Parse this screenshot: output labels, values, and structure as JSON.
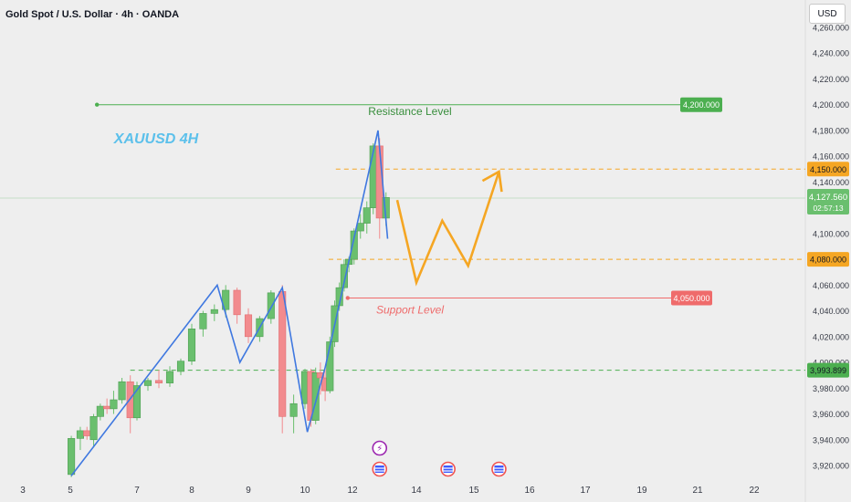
{
  "header": {
    "symbol_title": "Gold Spot / U.S. Dollar · 4h · OANDA",
    "currency_button": "USD"
  },
  "colors": {
    "background": "#eeeeee",
    "bull_candle": "#6abf6e",
    "bear_candle": "#f28b8e",
    "zigzag": "#3f78e0",
    "forecast_arrow": "#f5a623",
    "resistance_line": "#4caf50",
    "support_line": "#ef6b6b",
    "dashed_orange": "#f5a623",
    "dashed_green": "#4caf50",
    "axis_text": "#363a45"
  },
  "chart_data": {
    "type": "candlestick",
    "symbol_label": "XAUUSD 4H",
    "y_axis": {
      "min": 3910,
      "max": 4270,
      "ticks": [
        "4,260.000",
        "4,240.000",
        "4,220.000",
        "4,200.000",
        "4,180.000",
        "4,160.000",
        "4,140.000",
        "4,100.000",
        "4,060.000",
        "4,040.000",
        "4,020.000",
        "4,000.000",
        "3,980.000",
        "3,960.000",
        "3,940.000",
        "3,920.000"
      ],
      "tick_values": [
        4260,
        4240,
        4220,
        4200,
        4180,
        4160,
        4140,
        4100,
        4060,
        4040,
        4020,
        4000,
        3980,
        3960,
        3940,
        3920
      ]
    },
    "x_axis": {
      "ticks": [
        "3",
        "5",
        "7",
        "8",
        "9",
        "10",
        "12",
        "14",
        "15",
        "16",
        "17",
        "19",
        "21",
        "22"
      ],
      "tick_positions_day": [
        3,
        5,
        7,
        8,
        9,
        10,
        12,
        14,
        15,
        16,
        17,
        19,
        21,
        22
      ]
    },
    "candles": [
      {
        "d": 5.03,
        "o": 3913,
        "h": 3943,
        "l": 3911,
        "c": 3941
      },
      {
        "d": 5.3,
        "o": 3941,
        "h": 3950,
        "l": 3932,
        "c": 3947
      },
      {
        "d": 5.5,
        "o": 3947,
        "h": 3950,
        "l": 3940,
        "c": 3943
      },
      {
        "d": 5.7,
        "o": 3940,
        "h": 3960,
        "l": 3934,
        "c": 3958
      },
      {
        "d": 5.9,
        "o": 3958,
        "h": 3968,
        "l": 3955,
        "c": 3966
      },
      {
        "d": 6.1,
        "o": 3966,
        "h": 3972,
        "l": 3960,
        "c": 3964
      },
      {
        "d": 6.3,
        "o": 3964,
        "h": 3978,
        "l": 3960,
        "c": 3971
      },
      {
        "d": 6.55,
        "o": 3971,
        "h": 3988,
        "l": 3968,
        "c": 3985
      },
      {
        "d": 6.8,
        "o": 3985,
        "h": 3990,
        "l": 3945,
        "c": 3957
      },
      {
        "d": 7.0,
        "o": 3957,
        "h": 3985,
        "l": 3955,
        "c": 3982
      },
      {
        "d": 7.2,
        "o": 3982,
        "h": 3988,
        "l": 3978,
        "c": 3986
      },
      {
        "d": 7.4,
        "o": 3986,
        "h": 3994,
        "l": 3980,
        "c": 3984
      },
      {
        "d": 7.6,
        "o": 3984,
        "h": 3997,
        "l": 3981,
        "c": 3993
      },
      {
        "d": 7.8,
        "o": 3993,
        "h": 4003,
        "l": 3990,
        "c": 4001
      },
      {
        "d": 8.0,
        "o": 4001,
        "h": 4030,
        "l": 3998,
        "c": 4026
      },
      {
        "d": 8.2,
        "o": 4026,
        "h": 4040,
        "l": 4020,
        "c": 4038
      },
      {
        "d": 8.4,
        "o": 4038,
        "h": 4045,
        "l": 4032,
        "c": 4041
      },
      {
        "d": 8.6,
        "o": 4041,
        "h": 4060,
        "l": 4035,
        "c": 4056
      },
      {
        "d": 8.8,
        "o": 4056,
        "h": 4058,
        "l": 4030,
        "c": 4037
      },
      {
        "d": 9.0,
        "o": 4037,
        "h": 4042,
        "l": 4015,
        "c": 4020
      },
      {
        "d": 9.2,
        "o": 4020,
        "h": 4036,
        "l": 4016,
        "c": 4034
      },
      {
        "d": 9.4,
        "o": 4034,
        "h": 4056,
        "l": 4030,
        "c": 4054
      },
      {
        "d": 9.6,
        "o": 4055,
        "h": 4060,
        "l": 3945,
        "c": 3958
      },
      {
        "d": 9.8,
        "o": 3958,
        "h": 3975,
        "l": 3945,
        "c": 3968
      },
      {
        "d": 10.0,
        "o": 3968,
        "h": 3995,
        "l": 3964,
        "c": 3993
      },
      {
        "d": 10.25,
        "o": 3993,
        "h": 3995,
        "l": 3950,
        "c": 3955
      },
      {
        "d": 10.45,
        "o": 3955,
        "h": 3996,
        "l": 3952,
        "c": 3992
      },
      {
        "d": 10.65,
        "o": 3992,
        "h": 4000,
        "l": 3975,
        "c": 3988
      },
      {
        "d": 10.85,
        "o": 3988,
        "h": 3995,
        "l": 3970,
        "c": 3978
      },
      {
        "d": 11.05,
        "o": 3978,
        "h": 4020,
        "l": 3976,
        "c": 4016
      },
      {
        "d": 11.25,
        "o": 4016,
        "h": 4048,
        "l": 4012,
        "c": 4044
      },
      {
        "d": 11.45,
        "o": 4044,
        "h": 4062,
        "l": 4040,
        "c": 4058
      },
      {
        "d": 11.65,
        "o": 4058,
        "h": 4080,
        "l": 4055,
        "c": 4076
      },
      {
        "d": 11.85,
        "o": 4076,
        "h": 4082,
        "l": 4070,
        "c": 4080
      },
      {
        "d": 12.05,
        "o": 4080,
        "h": 4104,
        "l": 4076,
        "c": 4102
      },
      {
        "d": 12.25,
        "o": 4102,
        "h": 4115,
        "l": 4096,
        "c": 4108
      },
      {
        "d": 12.45,
        "o": 4108,
        "h": 4125,
        "l": 4100,
        "c": 4120
      },
      {
        "d": 12.65,
        "o": 4120,
        "h": 4170,
        "l": 4115,
        "c": 4168
      },
      {
        "d": 12.85,
        "o": 4168,
        "h": 4174,
        "l": 4096,
        "c": 4112
      },
      {
        "d": 13.05,
        "o": 4112,
        "h": 4132,
        "l": 4106,
        "c": 4128
      }
    ],
    "zigzag": [
      [
        5.03,
        3912
      ],
      [
        8.45,
        4060
      ],
      [
        8.85,
        4000
      ],
      [
        9.6,
        4058
      ],
      [
        10.1,
        3946
      ],
      [
        10.85,
        3996
      ],
      [
        12.8,
        4180
      ],
      [
        13.1,
        4096
      ]
    ],
    "forecast_path": [
      [
        13.4,
        4126
      ],
      [
        14.0,
        4062
      ],
      [
        14.45,
        4110
      ],
      [
        14.9,
        4075
      ],
      [
        15.45,
        4148
      ]
    ],
    "forecast_arrow_tip": [
      15.45,
      4148
    ],
    "horizontal_lines": [
      {
        "name": "resistance",
        "value": 4200,
        "style": "solid",
        "start_day": 5.8
      },
      {
        "name": "upper-dashed",
        "value": 4150,
        "style": "dashed",
        "start_day": 11.3
      },
      {
        "name": "lower-dashed",
        "value": 4080,
        "style": "dashed",
        "start_day": 11.0
      },
      {
        "name": "support",
        "value": 4050,
        "style": "solid",
        "start_day": 11.8
      },
      {
        "name": "bottom-dashed",
        "value": 3993.899,
        "style": "dashed",
        "start_day": 6.8
      }
    ],
    "price_labels": [
      {
        "name": "resistance-price",
        "text": "4,200.000",
        "value": 4200,
        "color": "#4caf50",
        "text_color": "#ffffff",
        "pos": "line-end"
      },
      {
        "name": "upper-dashed-price",
        "text": "4,150.000",
        "value": 4150,
        "color": "#f5a623",
        "text_color": "#131722",
        "pos": "axis"
      },
      {
        "name": "lower-dashed-price",
        "text": "4,080.000",
        "value": 4080,
        "color": "#f5a623",
        "text_color": "#131722",
        "pos": "axis"
      },
      {
        "name": "support-price",
        "text": "4,050.000",
        "value": 4050,
        "color": "#ef6b6b",
        "text_color": "#ffffff",
        "pos": "line-end"
      },
      {
        "name": "bottom-dashed-price",
        "text": "3,993.899",
        "value": 3993.899,
        "color": "#4caf50",
        "text_color": "#131722",
        "pos": "axis"
      }
    ],
    "current_price": {
      "text": "4,127.560",
      "countdown": "02:57:13",
      "value": 4127.56,
      "color": "#6abf6e"
    },
    "annotations": [
      {
        "name": "symbol-label",
        "text": "XAUUSD 4H",
        "day": 7.35,
        "value": 4170,
        "color": "#5bc0eb"
      },
      {
        "name": "resistance-label",
        "text": "Resistance Level",
        "day": 13.8,
        "value": 4192,
        "color": "#388e3c"
      },
      {
        "name": "support-label",
        "text": "Support Level",
        "day": 13.8,
        "value": 4038,
        "color": "#ef6b6b"
      }
    ],
    "events": [
      {
        "name": "lightning-event",
        "day": 12.85,
        "row": 0,
        "glyph": "⚡",
        "color": "#9c27b0"
      },
      {
        "name": "us-flag-event",
        "day": 12.85,
        "row": 1,
        "glyph": "US",
        "color": "#ef5350"
      },
      {
        "name": "us-flag-event",
        "day": 14.55,
        "row": 1,
        "glyph": "US",
        "color": "#ef5350"
      },
      {
        "name": "us-flag-event",
        "day": 15.45,
        "row": 1,
        "glyph": "US",
        "color": "#ef5350"
      }
    ]
  }
}
